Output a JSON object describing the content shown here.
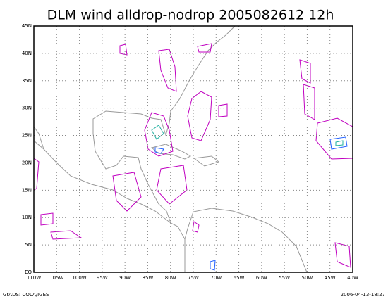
{
  "title": "DLM wind alldrop-nodrop 2005082612 12h",
  "lat_labels": [
    "EQ",
    "5N",
    "10N",
    "15N",
    "20N",
    "25N",
    "30N",
    "35N",
    "40N",
    "45N"
  ],
  "lon_labels": [
    "110W",
    "105W",
    "100W",
    "95W",
    "90W",
    "85W",
    "80W",
    "75W",
    "70W",
    "65W",
    "60W",
    "55W",
    "50W",
    "45W",
    "40W"
  ],
  "footer_left": "GrADS: COLA/IGES",
  "footer_right": "2006-04-13-18:27"
}
